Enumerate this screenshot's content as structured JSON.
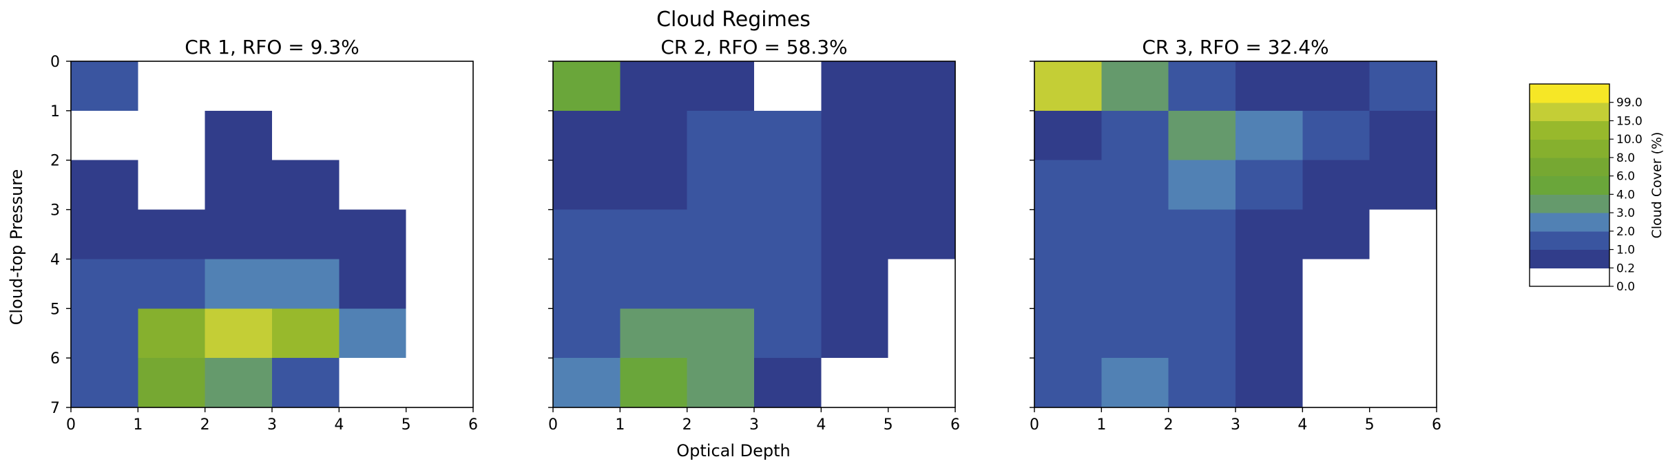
{
  "figure": {
    "suptitle": "Cloud Regimes",
    "xlabel": "Optical Depth",
    "ylabel": "Cloud-top Pressure"
  },
  "colors": {
    "level_colors": [
      "#ffffff",
      "#313d8a",
      "#3a55a0",
      "#5181b4",
      "#659a6c",
      "#6aa63a",
      "#76a832",
      "#86b02e",
      "#98b92c",
      "#c4ce36",
      "#f6e726"
    ]
  },
  "colorbar": {
    "label": "Cloud Cover (%)",
    "tick_labels": [
      "0.0",
      "0.2",
      "1.0",
      "2.0",
      "3.0",
      "4.0",
      "6.0",
      "8.0",
      "10.0",
      "15.0",
      "99.0"
    ]
  },
  "chart_data": [
    {
      "type": "heatmap",
      "title": "CR 1, RFO = 9.3%",
      "x_ticks": [
        "0",
        "1",
        "2",
        "3",
        "4",
        "5",
        "6"
      ],
      "y_ticks": [
        "0",
        "1",
        "2",
        "3",
        "4",
        "5",
        "6",
        "7"
      ],
      "xlim": [
        0,
        6
      ],
      "ylim": [
        7,
        0
      ],
      "values": [
        [
          1.5,
          0,
          0,
          0,
          0,
          0
        ],
        [
          0,
          0,
          0.5,
          0,
          0,
          0
        ],
        [
          0.5,
          0,
          0.5,
          0.5,
          0,
          0
        ],
        [
          0.5,
          0.5,
          0.5,
          0.5,
          0.5,
          0
        ],
        [
          1.5,
          1.5,
          2.5,
          2.5,
          0.5,
          0
        ],
        [
          1.5,
          9,
          20,
          12,
          2.5,
          0
        ],
        [
          1.5,
          7,
          3.5,
          1.5,
          0,
          0
        ]
      ]
    },
    {
      "type": "heatmap",
      "title": "CR 2, RFO = 58.3%",
      "x_ticks": [
        "0",
        "1",
        "2",
        "3",
        "4",
        "5",
        "6"
      ],
      "y_ticks": [
        "0",
        "1",
        "2",
        "3",
        "4",
        "5",
        "6",
        "7"
      ],
      "xlim": [
        0,
        6
      ],
      "ylim": [
        7,
        0
      ],
      "values": [
        [
          5,
          0.5,
          0.5,
          0,
          0.5,
          0.5
        ],
        [
          0.5,
          0.5,
          1.5,
          1.5,
          0.5,
          0.5
        ],
        [
          0.5,
          0.5,
          1.5,
          1.5,
          0.5,
          0.5
        ],
        [
          1.5,
          1.5,
          1.5,
          1.5,
          0.5,
          0.5
        ],
        [
          1.5,
          1.5,
          1.5,
          1.5,
          0.5,
          0
        ],
        [
          1.5,
          3.5,
          3.5,
          1.5,
          0.5,
          0
        ],
        [
          2.5,
          5,
          3.5,
          0.5,
          0,
          0
        ]
      ]
    },
    {
      "type": "heatmap",
      "title": "CR 3, RFO = 32.4%",
      "x_ticks": [
        "0",
        "1",
        "2",
        "3",
        "4",
        "5",
        "6"
      ],
      "y_ticks": [
        "0",
        "1",
        "2",
        "3",
        "4",
        "5",
        "6",
        "7"
      ],
      "xlim": [
        0,
        6
      ],
      "ylim": [
        7,
        0
      ],
      "values": [
        [
          20,
          3.5,
          1.5,
          0.5,
          0.5,
          1.5
        ],
        [
          0.5,
          1.5,
          3.5,
          2.5,
          1.5,
          0.5
        ],
        [
          1.5,
          1.5,
          2.5,
          1.5,
          0.5,
          0.5
        ],
        [
          1.5,
          1.5,
          1.5,
          0.5,
          0.5,
          0
        ],
        [
          1.5,
          1.5,
          1.5,
          0.5,
          0,
          0
        ],
        [
          1.5,
          1.5,
          1.5,
          0.5,
          0,
          0
        ],
        [
          1.5,
          2.5,
          1.5,
          0.5,
          0,
          0
        ]
      ]
    }
  ]
}
